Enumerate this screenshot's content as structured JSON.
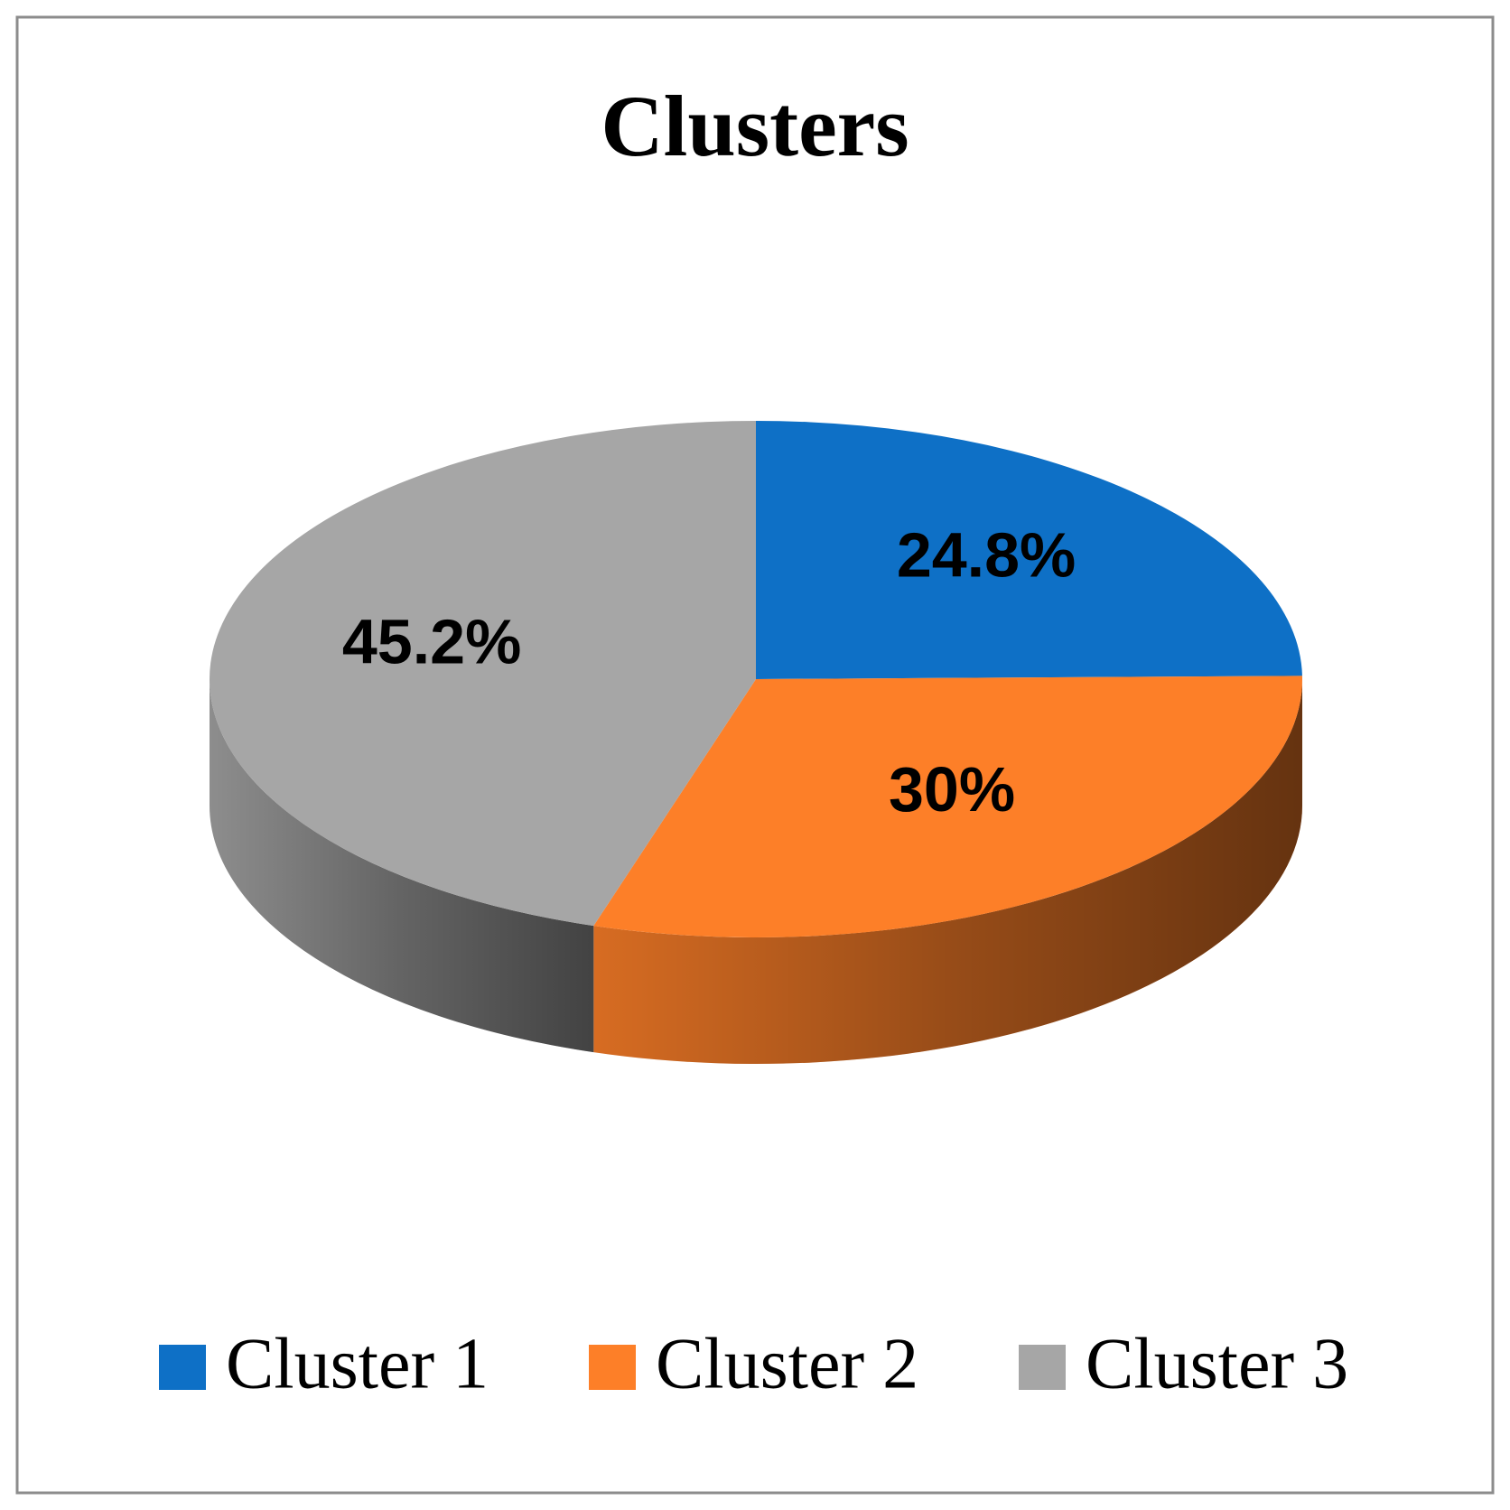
{
  "chart_data": {
    "type": "pie",
    "title": "Clusters",
    "categories": [
      "Cluster 1",
      "Cluster 2",
      "Cluster 3"
    ],
    "values": [
      24.8,
      30,
      45.2
    ],
    "value_labels": [
      "24.8%",
      "30%",
      "45.2%"
    ],
    "colors": [
      "#0e70c6",
      "#fd7f28",
      "#a6a6a6"
    ],
    "legend": "bottom"
  }
}
